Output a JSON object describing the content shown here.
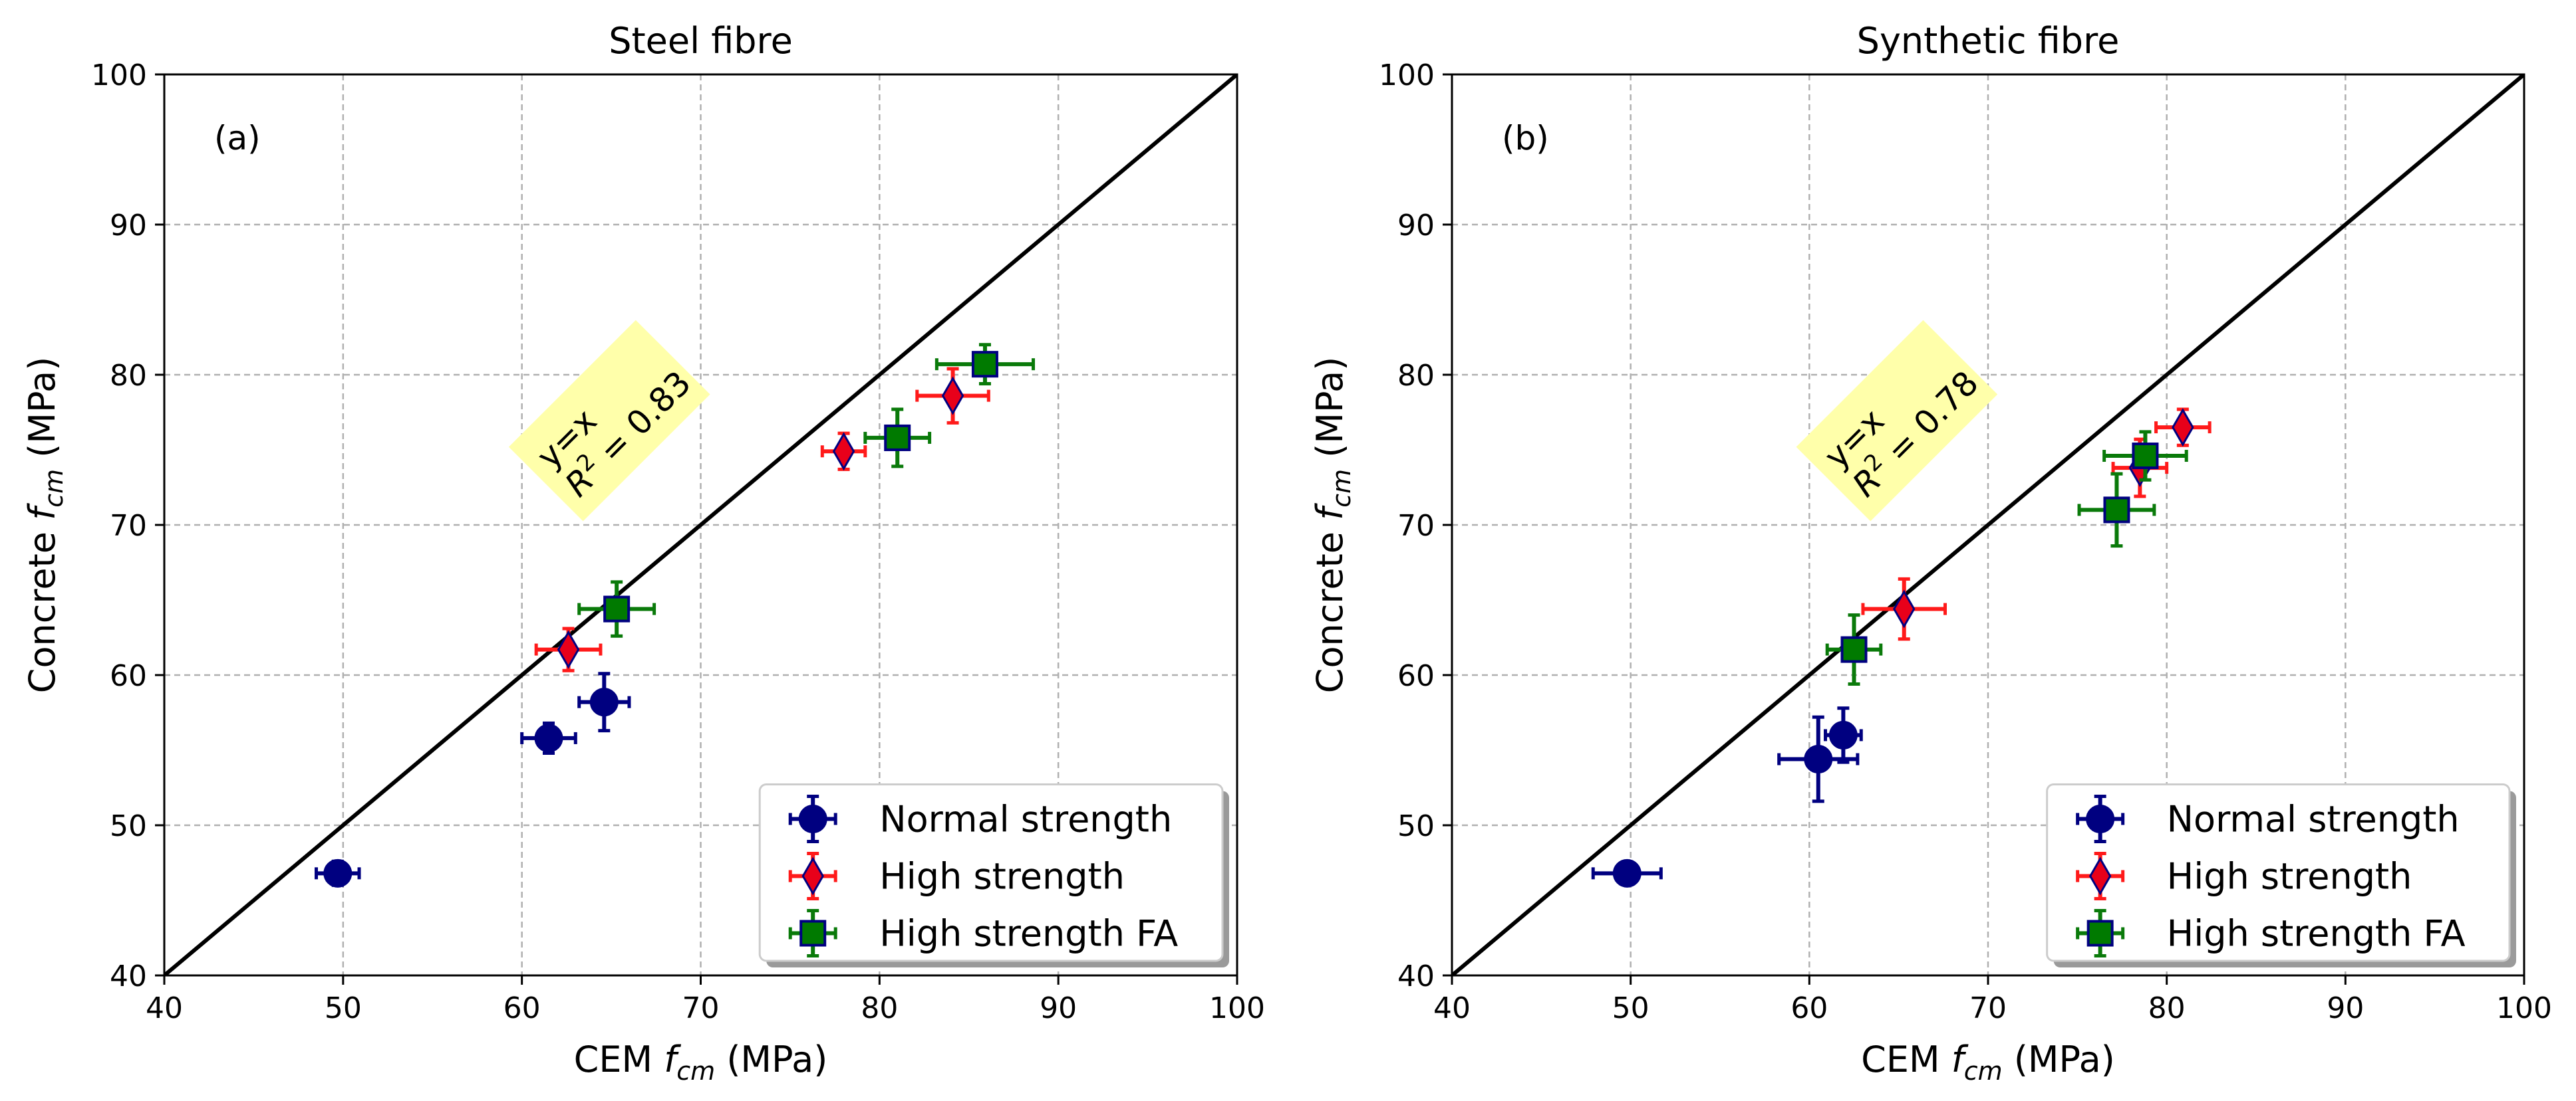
{
  "chart_data": [
    {
      "type": "scatter",
      "title": "Steel fibre",
      "panel_label": "(a)",
      "xlabel": "CEM f_cm (MPa)",
      "ylabel": "Concrete f_cm (MPa)",
      "xlabel_parts": [
        "CEM ",
        "f",
        "cm",
        " (MPa)"
      ],
      "ylabel_parts": [
        "Concrete ",
        "f",
        "cm",
        " (MPa)"
      ],
      "xlim": [
        40,
        100
      ],
      "ylim": [
        40,
        100
      ],
      "xticks": [
        40,
        50,
        60,
        70,
        80,
        90,
        100
      ],
      "yticks": [
        40,
        50,
        60,
        70,
        80,
        90,
        100
      ],
      "grid": true,
      "reference_line": "y=x",
      "annotation": {
        "line1": "y=x",
        "r2_label": "R",
        "r2_sup": "2",
        "r2_value": " = 0.83",
        "at": [
          63,
          72
        ],
        "rotation_deg": 45,
        "color": "#ffffaa"
      },
      "legend_position": "lower right",
      "series": [
        {
          "name": "Normal strength",
          "marker": "circle",
          "color": "#000080",
          "error_color": "#000080",
          "edge_color": "#000080",
          "points": [
            {
              "x": 49.7,
              "y": 46.8,
              "xerr": 1.2,
              "yerr": 0.8
            },
            {
              "x": 61.5,
              "y": 55.8,
              "xerr": 1.5,
              "yerr": 1.0
            },
            {
              "x": 64.6,
              "y": 58.2,
              "xerr": 1.4,
              "yerr": 1.9
            }
          ]
        },
        {
          "name": "High strength",
          "marker": "diamond",
          "color": "#e8001a",
          "error_color": "#ff1a1a",
          "edge_color": "#000080",
          "points": [
            {
              "x": 62.6,
              "y": 61.7,
              "xerr": 1.8,
              "yerr": 1.4
            },
            {
              "x": 78.0,
              "y": 74.9,
              "xerr": 1.2,
              "yerr": 1.2
            },
            {
              "x": 84.1,
              "y": 78.6,
              "xerr": 2.0,
              "yerr": 1.8
            }
          ]
        },
        {
          "name": "High strength FA",
          "marker": "square",
          "color": "#007a00",
          "error_color": "#0a7a0a",
          "edge_color": "#000080",
          "points": [
            {
              "x": 65.3,
              "y": 64.4,
              "xerr": 2.1,
              "yerr": 1.8
            },
            {
              "x": 81.0,
              "y": 75.8,
              "xerr": 1.8,
              "yerr": 1.9
            },
            {
              "x": 85.9,
              "y": 80.7,
              "xerr": 2.7,
              "yerr": 1.3
            }
          ]
        }
      ]
    },
    {
      "type": "scatter",
      "title": "Synthetic fibre",
      "panel_label": "(b)",
      "xlabel": "CEM f_cm (MPa)",
      "ylabel": "Concrete f_cm (MPa)",
      "xlabel_parts": [
        "CEM ",
        "f",
        "cm",
        " (MPa)"
      ],
      "ylabel_parts": [
        "Concrete ",
        "f",
        "cm",
        " (MPa)"
      ],
      "xlim": [
        40,
        100
      ],
      "ylim": [
        40,
        100
      ],
      "xticks": [
        40,
        50,
        60,
        70,
        80,
        90,
        100
      ],
      "yticks": [
        40,
        50,
        60,
        70,
        80,
        90,
        100
      ],
      "grid": true,
      "reference_line": "y=x",
      "annotation": {
        "line1": "y=x",
        "r2_label": "R",
        "r2_sup": "2",
        "r2_value": " = 0.78",
        "at": [
          63,
          72
        ],
        "rotation_deg": 45,
        "color": "#ffffaa"
      },
      "legend_position": "lower right",
      "series": [
        {
          "name": "Normal strength",
          "marker": "circle",
          "color": "#000080",
          "error_color": "#000080",
          "edge_color": "#000080",
          "points": [
            {
              "x": 49.8,
              "y": 46.8,
              "xerr": 1.9,
              "yerr": 0.7
            },
            {
              "x": 60.5,
              "y": 54.4,
              "xerr": 2.2,
              "yerr": 2.8
            },
            {
              "x": 61.9,
              "y": 56.0,
              "xerr": 1.0,
              "yerr": 1.8
            }
          ]
        },
        {
          "name": "High strength",
          "marker": "diamond",
          "color": "#e8001a",
          "error_color": "#ff1a1a",
          "edge_color": "#000080",
          "points": [
            {
              "x": 65.3,
              "y": 64.4,
              "xerr": 2.3,
              "yerr": 2.0
            },
            {
              "x": 78.5,
              "y": 73.8,
              "xerr": 1.5,
              "yerr": 1.9
            },
            {
              "x": 80.9,
              "y": 76.5,
              "xerr": 1.5,
              "yerr": 1.2
            }
          ]
        },
        {
          "name": "High strength FA",
          "marker": "square",
          "color": "#007a00",
          "error_color": "#0a7a0a",
          "edge_color": "#000080",
          "points": [
            {
              "x": 62.5,
              "y": 61.7,
              "xerr": 1.5,
              "yerr": 2.3
            },
            {
              "x": 77.2,
              "y": 71.0,
              "xerr": 2.1,
              "yerr": 2.4
            },
            {
              "x": 78.8,
              "y": 74.6,
              "xerr": 2.3,
              "yerr": 1.6
            }
          ]
        }
      ]
    }
  ]
}
